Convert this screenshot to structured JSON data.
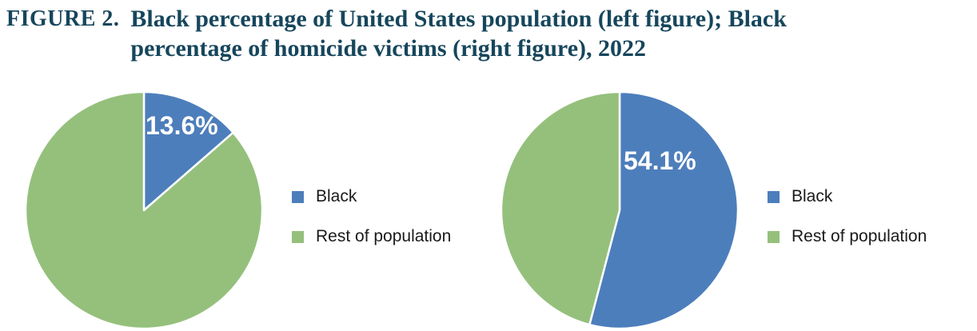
{
  "figure": {
    "label": "FIGURE 2.",
    "title_line1": "Black percentage of United States population (left figure); Black",
    "title_line2": "percentage of homicide victims (right figure), 2022"
  },
  "colors": {
    "black_slice": "#4D7EBC",
    "rest_slice": "#95C07C",
    "title_text": "#16465C",
    "data_label_text": "#FFFFFF"
  },
  "chart_data": [
    {
      "type": "pie",
      "title": "Black percentage of United States population",
      "year": "2022",
      "data_label": "13.6%",
      "start_angle_deg": -90,
      "direction": "clockwise",
      "slices": [
        {
          "label": "Black",
          "value": 13.6,
          "color": "#4D7EBC"
        },
        {
          "label": "Rest of population",
          "value": 86.4,
          "color": "#95C07C"
        }
      ],
      "legend_position": "right"
    },
    {
      "type": "pie",
      "title": "Black percentage of homicide victims",
      "year": "2022",
      "data_label": "54.1%",
      "start_angle_deg": -90,
      "direction": "clockwise",
      "slices": [
        {
          "label": "Black",
          "value": 54.1,
          "color": "#4D7EBC"
        },
        {
          "label": "Rest of population",
          "value": 45.9,
          "color": "#95C07C"
        }
      ],
      "legend_position": "right"
    }
  ]
}
